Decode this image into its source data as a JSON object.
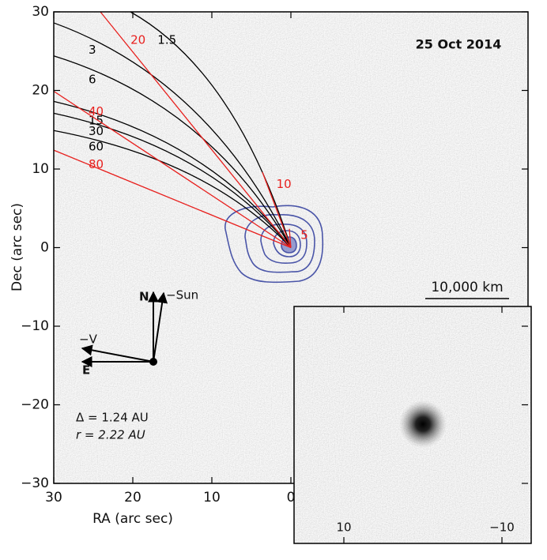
{
  "chart_data": {
    "type": "image",
    "title": "25 Oct 2014",
    "xlabel": "RA (arc sec)",
    "ylabel": "Dec (arc sec)",
    "xlim": [
      30,
      -30
    ],
    "ylim": [
      -30,
      30
    ],
    "xticks": [
      30,
      20,
      10,
      0
    ],
    "yticks": [
      30,
      20,
      10,
      0,
      {
        "value": -10,
        "label": "−10"
      },
      {
        "value": -20,
        "label": "−20"
      },
      {
        "value": -30,
        "label": "−30"
      }
    ],
    "series": [
      {
        "name": "1.5",
        "color": "#000000",
        "curved": true,
        "x": [
          0,
          20.3
        ],
        "y": [
          0,
          30
        ]
      },
      {
        "name": "3",
        "color": "#000000",
        "curved": true,
        "x": [
          0,
          30
        ],
        "y": [
          0,
          28.6
        ]
      },
      {
        "name": "6",
        "color": "#000000",
        "curved": true,
        "x": [
          0,
          30
        ],
        "y": [
          0,
          24.4
        ]
      },
      {
        "name": "15",
        "color": "#000000",
        "curved": true,
        "x": [
          0,
          30
        ],
        "y": [
          0,
          18.6
        ]
      },
      {
        "name": "30",
        "color": "#000000",
        "curved": true,
        "x": [
          0,
          30
        ],
        "y": [
          0,
          17.1
        ]
      },
      {
        "name": "60",
        "color": "#000000",
        "curved": true,
        "x": [
          0,
          30
        ],
        "y": [
          0,
          14.9
        ]
      },
      {
        "name": "20",
        "color": "#e8201e",
        "curved": false,
        "x": [
          0,
          24.1
        ],
        "y": [
          0,
          30
        ]
      },
      {
        "name": "40",
        "color": "#e8201e",
        "curved": false,
        "x": [
          0,
          30
        ],
        "y": [
          0,
          19.9
        ]
      },
      {
        "name": "80",
        "color": "#e8201e",
        "curved": false,
        "x": [
          0,
          30
        ],
        "y": [
          0,
          12.4
        ]
      },
      {
        "name": "10",
        "color": "#e8201e",
        "curved": false,
        "x": [
          0,
          3.6
        ],
        "y": [
          0,
          9.6
        ]
      },
      {
        "name": "5",
        "color": "#e8201e",
        "curved": false,
        "x": [
          0,
          0.2
        ],
        "y": [
          0,
          2.4
        ]
      }
    ],
    "scale_bar": "10,000 km",
    "compass": {
      "north": "N",
      "sun": "−Sun",
      "velocity": "−V",
      "east": "E"
    },
    "notes": [
      "Δ = 1.24 AU",
      "r = 2.22 AU"
    ],
    "inset": {
      "xlim": [
        16.3,
        -13.7
      ],
      "xticks": [
        10,
        {
          "value": -10,
          "label": "−10"
        }
      ]
    }
  }
}
